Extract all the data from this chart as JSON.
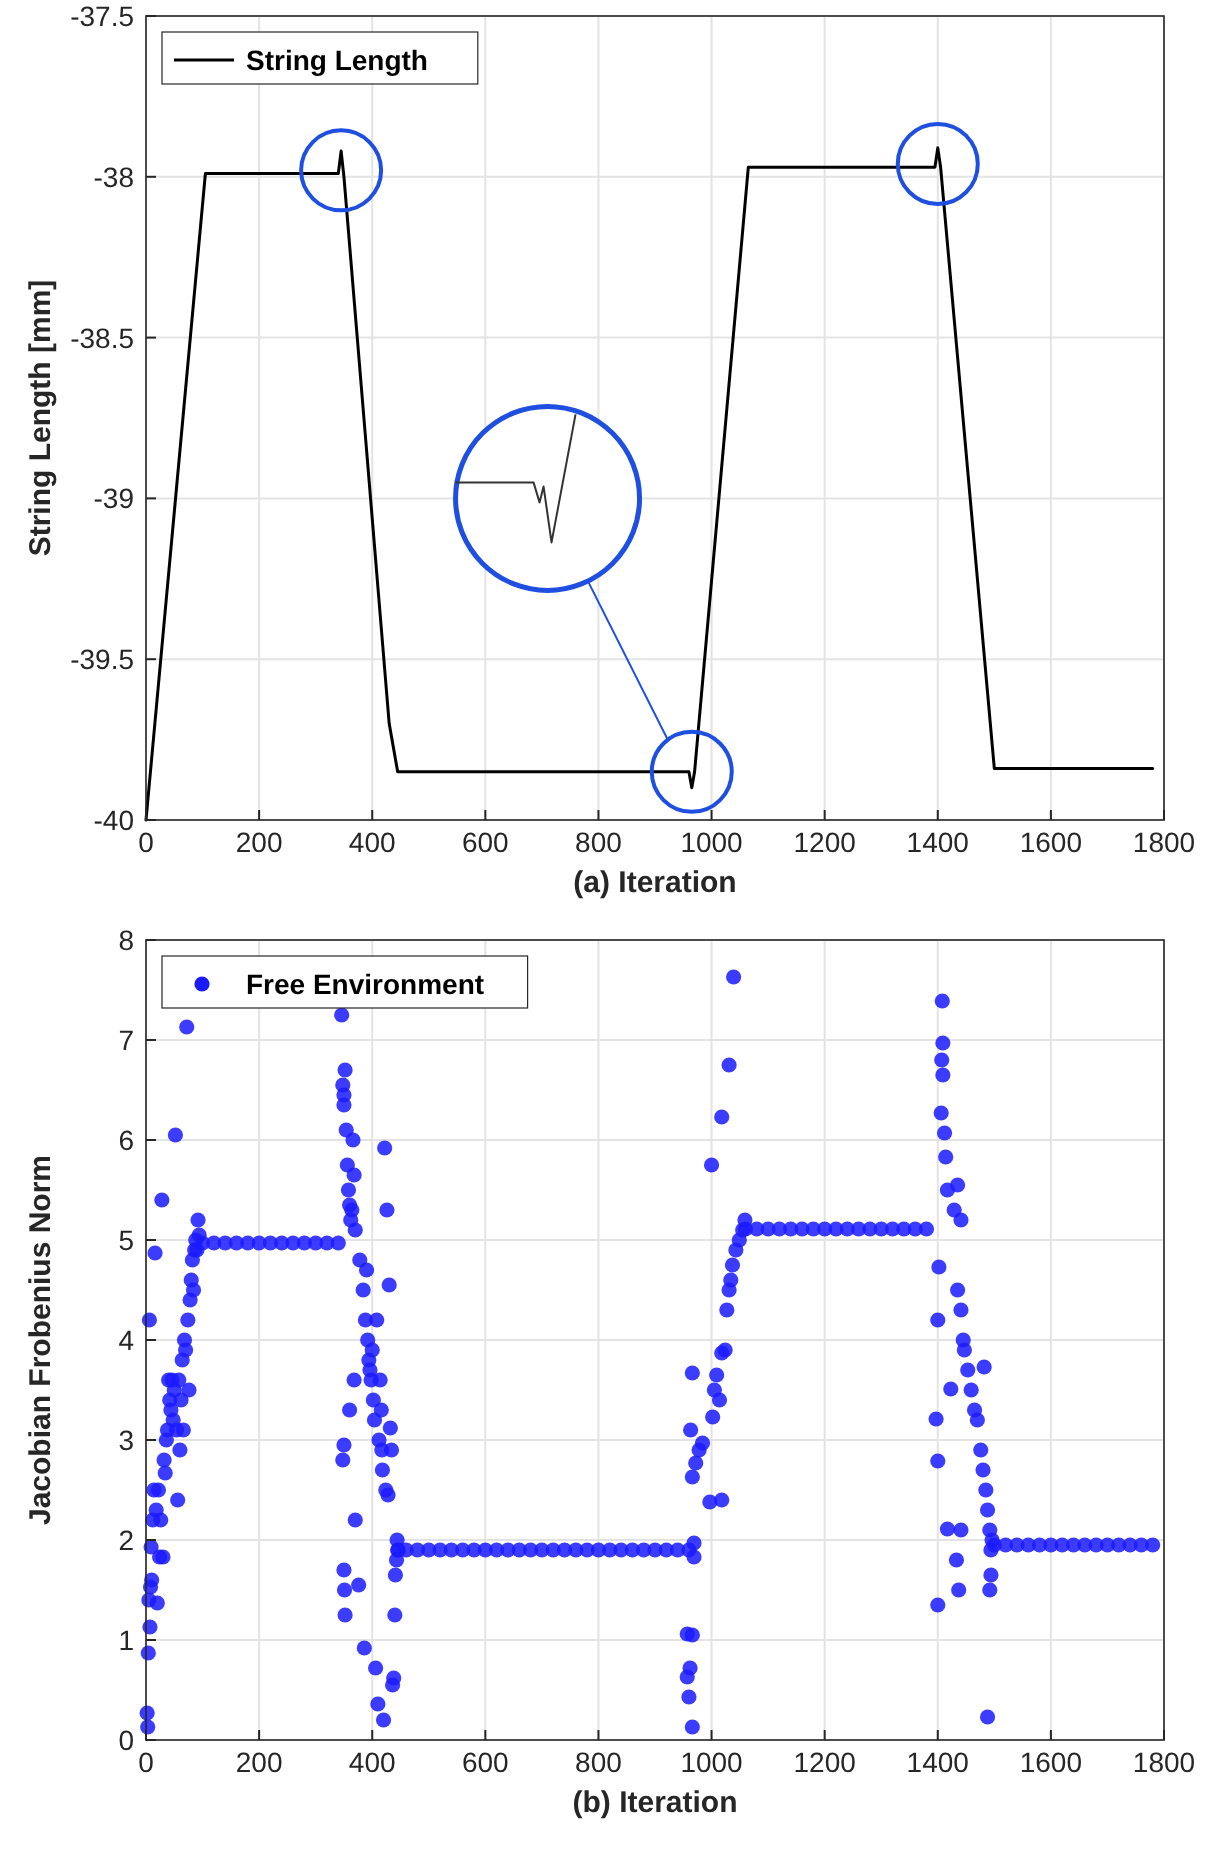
{
  "chart_data": [
    {
      "type": "line",
      "xlabel": "(a) Iteration",
      "ylabel": "String Length [mm]",
      "xlim": [
        0,
        1800
      ],
      "ylim": [
        -40,
        -37.5
      ],
      "xticks": [
        0,
        200,
        400,
        600,
        800,
        1000,
        1200,
        1400,
        1600,
        1800
      ],
      "yticks": [
        -40,
        -39.5,
        -39,
        -38.5,
        -38,
        -37.5
      ],
      "grid": true,
      "legend": "top left",
      "marker": "none",
      "line_style": "solid",
      "series": [
        {
          "name": "String Length",
          "color": "#000000",
          "x": [
            0,
            105,
            340,
            345,
            350,
            430,
            445,
            960,
            965,
            970,
            1065,
            1395,
            1400,
            1405,
            1500,
            1780
          ],
          "values": [
            -40,
            -37.99,
            -37.99,
            -37.92,
            -38.0,
            -39.7,
            -39.85,
            -39.85,
            -39.9,
            -39.85,
            -37.97,
            -37.97,
            -37.91,
            -37.97,
            -39.84,
            -39.84
          ]
        }
      ]
    },
    {
      "type": "scatter",
      "xlabel": "(b) Iteration",
      "ylabel": "Jacobian Frobenius Norm",
      "xlim": [
        0,
        1800
      ],
      "ylim": [
        0,
        8
      ],
      "xticks": [
        0,
        200,
        400,
        600,
        800,
        1000,
        1200,
        1400,
        1600,
        1800
      ],
      "yticks": [
        0,
        1,
        2,
        3,
        4,
        5,
        6,
        7,
        8
      ],
      "grid": true,
      "legend": "top left",
      "marker": "circle",
      "series": [
        {
          "name": "Free Environment",
          "color": "#1a1aff",
          "x": [
            2,
            3,
            4,
            5,
            6,
            7,
            8,
            9,
            10,
            12,
            14,
            16,
            18,
            20,
            22,
            24,
            26,
            28,
            30,
            32,
            34,
            36,
            38,
            40,
            42,
            44,
            46,
            48,
            50,
            52,
            54,
            56,
            58,
            60,
            62,
            64,
            66,
            68,
            70,
            72,
            74,
            76,
            78,
            80,
            82,
            84,
            86,
            88,
            90,
            92,
            94,
            100,
            120,
            140,
            160,
            180,
            200,
            220,
            240,
            260,
            280,
            300,
            320,
            340,
            346,
            348,
            350,
            352,
            350,
            354,
            356,
            358,
            360,
            362,
            364,
            366,
            368,
            370,
            350,
            348,
            350,
            351,
            352,
            360,
            368,
            370,
            376,
            378,
            384,
            386,
            388,
            390,
            392,
            394,
            396,
            398,
            400,
            402,
            404,
            406,
            408,
            410,
            412,
            414,
            416,
            417,
            418,
            420,
            422,
            424,
            426,
            428,
            430,
            432,
            434,
            436,
            438,
            440,
            441,
            443,
            444,
            445,
            446,
            460,
            480,
            500,
            520,
            540,
            560,
            580,
            600,
            620,
            640,
            660,
            680,
            700,
            720,
            740,
            760,
            780,
            800,
            820,
            840,
            860,
            880,
            900,
            920,
            940,
            960,
            966,
            960,
            957,
            962,
            957,
            966,
            969,
            969,
            966,
            963,
            966,
            972,
            978,
            984,
            997,
            1018,
            1002,
            1005,
            1009,
            1014,
            1018,
            1024,
            1027,
            1031,
            1034,
            1037,
            1043,
            1049,
            1055,
            1059,
            1000,
            1018,
            1031,
            1039,
            1060,
            1080,
            1100,
            1120,
            1140,
            1160,
            1180,
            1200,
            1220,
            1240,
            1260,
            1280,
            1300,
            1320,
            1340,
            1360,
            1380,
            1408,
            1409,
            1407,
            1409,
            1406,
            1412,
            1414,
            1417,
            1435,
            1429,
            1441,
            1402,
            1400,
            1423,
            1397,
            1400,
            1417,
            1441,
            1433,
            1437,
            1400,
            1435,
            1441,
            1445,
            1447,
            1453,
            1459,
            1465,
            1470,
            1476,
            1480,
            1485,
            1488,
            1492,
            1494,
            1494,
            1492,
            1488,
            1496,
            1482,
            1500,
            1520,
            1540,
            1560,
            1580,
            1600,
            1620,
            1640,
            1660,
            1680,
            1700,
            1720,
            1740,
            1760,
            1780
          ],
          "values": [
            0.27,
            0.13,
            0.87,
            1.4,
            4.2,
            1.13,
            1.53,
            1.93,
            1.6,
            2.2,
            2.5,
            4.87,
            2.3,
            1.37,
            2.5,
            1.83,
            2.2,
            5.4,
            1.83,
            2.8,
            2.67,
            3.0,
            3.1,
            3.6,
            3.4,
            3.3,
            3.6,
            3.2,
            3.5,
            6.05,
            3.1,
            2.4,
            3.6,
            2.9,
            3.4,
            3.8,
            3.1,
            4.0,
            3.9,
            7.13,
            4.2,
            3.5,
            4.4,
            4.6,
            4.8,
            4.5,
            4.9,
            5.0,
            4.9,
            5.2,
            5.05,
            4.97,
            4.97,
            4.97,
            4.97,
            4.97,
            4.97,
            4.97,
            4.97,
            4.97,
            4.97,
            4.97,
            4.97,
            4.97,
            7.25,
            6.55,
            6.45,
            6.7,
            6.35,
            6.1,
            5.75,
            5.5,
            5.35,
            5.2,
            5.3,
            6.0,
            5.65,
            5.1,
            2.95,
            2.8,
            1.7,
            1.5,
            1.25,
            3.3,
            3.6,
            2.2,
            1.55,
            4.8,
            4.5,
            0.92,
            4.2,
            4.7,
            4.0,
            3.8,
            3.7,
            3.6,
            3.9,
            3.4,
            3.2,
            0.72,
            4.2,
            0.36,
            3.0,
            3.6,
            3.3,
            2.9,
            2.7,
            0.2,
            5.92,
            2.5,
            5.3,
            2.45,
            4.55,
            3.12,
            2.9,
            0.55,
            0.62,
            1.25,
            1.65,
            1.8,
            2.0,
            1.9,
            1.9,
            1.9,
            1.9,
            1.9,
            1.9,
            1.9,
            1.9,
            1.9,
            1.9,
            1.9,
            1.9,
            1.9,
            1.9,
            1.9,
            1.9,
            1.9,
            1.9,
            1.9,
            1.9,
            1.9,
            1.9,
            1.9,
            1.9,
            1.9,
            1.9,
            1.9,
            1.9,
            0.13,
            0.43,
            0.63,
            0.72,
            1.06,
            1.05,
            1.83,
            1.97,
            2.63,
            3.1,
            3.67,
            2.77,
            2.9,
            2.97,
            2.38,
            2.4,
            3.23,
            3.5,
            3.65,
            3.4,
            3.87,
            3.9,
            4.3,
            4.5,
            4.6,
            4.75,
            4.9,
            5.0,
            5.1,
            5.2,
            5.75,
            6.23,
            6.75,
            7.63,
            5.11,
            5.11,
            5.11,
            5.11,
            5.11,
            5.11,
            5.11,
            5.11,
            5.11,
            5.11,
            5.11,
            5.11,
            5.11,
            5.11,
            5.11,
            5.11,
            5.11,
            7.39,
            6.97,
            6.8,
            6.65,
            6.27,
            6.07,
            5.83,
            5.5,
            5.55,
            5.3,
            5.2,
            4.73,
            4.2,
            3.51,
            3.21,
            2.79,
            2.11,
            2.1,
            1.8,
            1.5,
            1.35,
            4.5,
            4.3,
            4.0,
            3.9,
            3.7,
            3.5,
            3.3,
            3.2,
            2.9,
            2.7,
            2.5,
            2.3,
            2.1,
            1.9,
            1.65,
            1.5,
            0.23,
            2.0,
            3.73,
            1.95,
            1.95,
            1.95,
            1.95,
            1.95,
            1.95,
            1.95,
            1.95,
            1.95,
            1.95,
            1.95,
            1.95,
            1.95,
            1.95,
            1.95
          ]
        }
      ]
    }
  ]
}
